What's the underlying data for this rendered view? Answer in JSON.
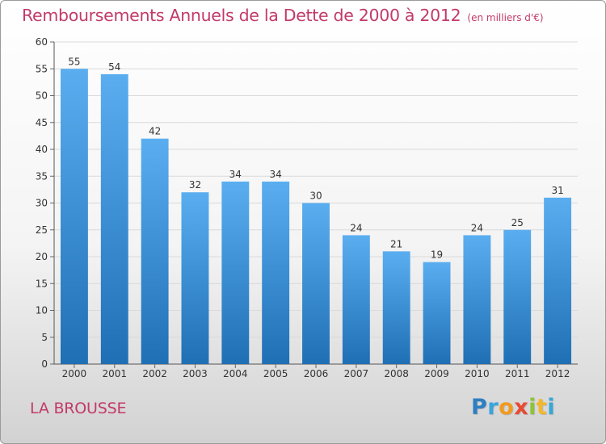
{
  "header": {
    "title": "Remboursements Annuels de la Dette de 2000 à 2012",
    "unit": "(en milliers d'€)"
  },
  "footer": {
    "commune": "LA BROUSSE",
    "logo_letters": [
      "P",
      "r",
      "o",
      "x",
      "i",
      "t",
      "i"
    ],
    "logo_colors": [
      "#2e7fc2",
      "#3aa4de",
      "#f29a1e",
      "#e84a32",
      "#8cc43a",
      "#f0b82a",
      "#35a8d8"
    ]
  },
  "chart_data": {
    "type": "bar",
    "title": "Remboursements Annuels de la Dette de 2000 à 2012",
    "xlabel": "",
    "ylabel": "",
    "categories": [
      "2000",
      "2001",
      "2002",
      "2003",
      "2004",
      "2005",
      "2006",
      "2007",
      "2008",
      "2009",
      "2010",
      "2011",
      "2012"
    ],
    "values": [
      55,
      54,
      42,
      32,
      34,
      34,
      30,
      24,
      21,
      19,
      24,
      25,
      31
    ],
    "ylim": [
      0,
      60
    ],
    "yticks": [
      0,
      5,
      10,
      15,
      20,
      25,
      30,
      35,
      40,
      45,
      50,
      55,
      60
    ],
    "grid": true,
    "bar_color_top": "#5aaef0",
    "bar_color_bottom": "#1f6fb5"
  }
}
